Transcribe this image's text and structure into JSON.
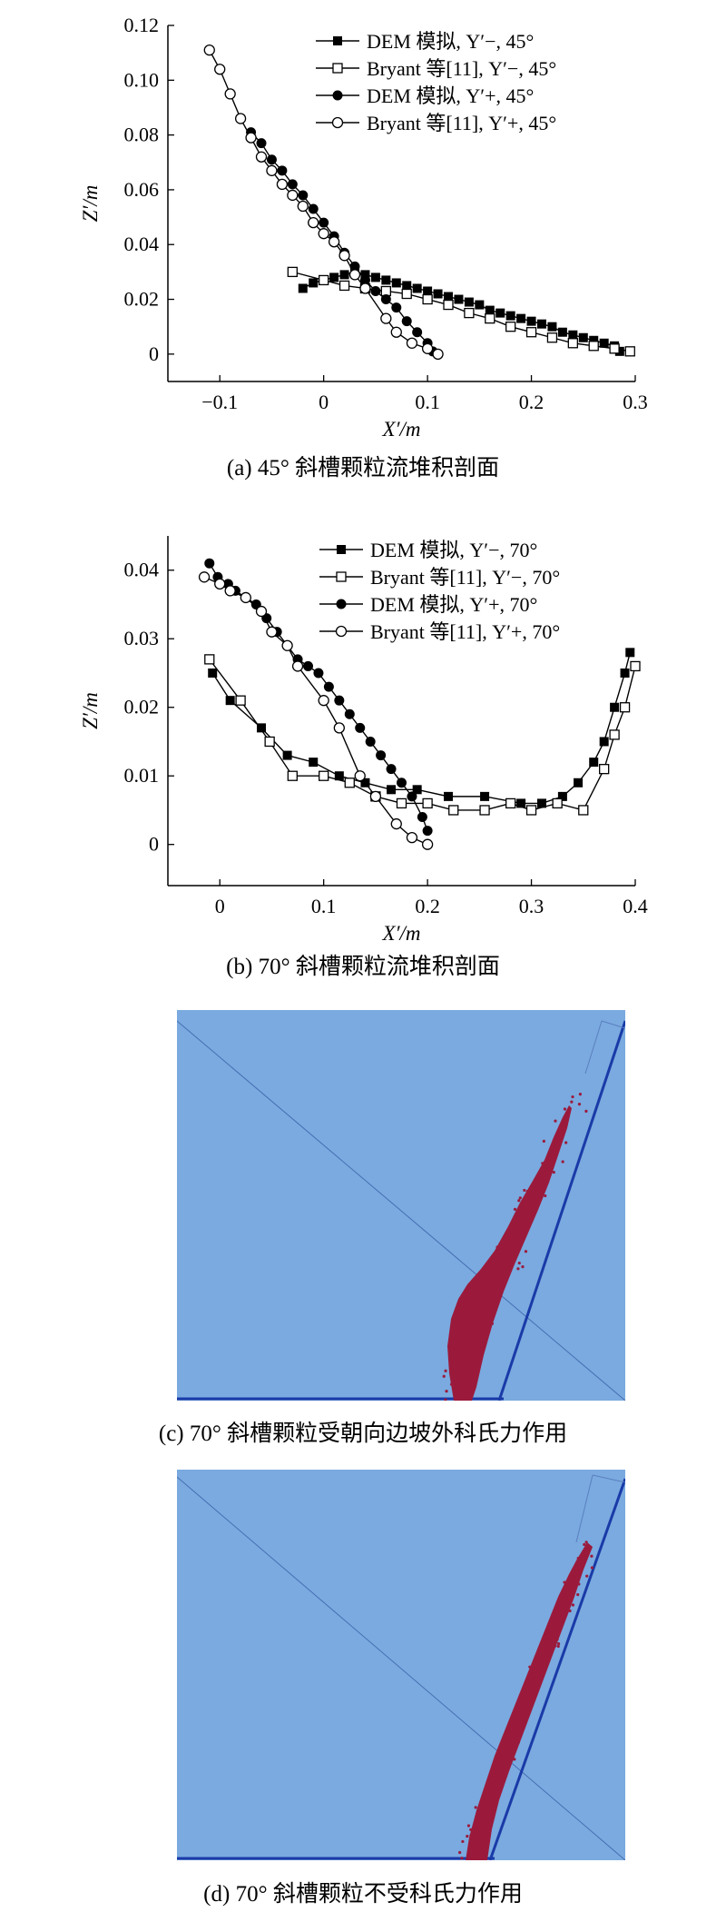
{
  "charts": {
    "a": {
      "caption": "(a) 45° 斜槽颗粒流堆积剖面",
      "xlabel": "X′/m",
      "ylabel": "Z′/m",
      "xticks": [
        "−0.1",
        "0",
        "0.1",
        "0.2",
        "0.3"
      ],
      "yticks": [
        "0",
        "0.02",
        "0.04",
        "0.06",
        "0.08",
        "0.10",
        "0.12"
      ],
      "legend": [
        {
          "label": "DEM 模拟, Y′−, 45°",
          "marker": "square-filled"
        },
        {
          "label": "Bryant 等[11], Y′−, 45°",
          "marker": "square-open"
        },
        {
          "label": "DEM 模拟, Y′+, 45°",
          "marker": "circle-filled"
        },
        {
          "label": "Bryant 等[11], Y′+, 45°",
          "marker": "circle-open"
        }
      ]
    },
    "b": {
      "caption": "(b) 70° 斜槽颗粒流堆积剖面",
      "xlabel": "X′/m",
      "ylabel": "Z′/m",
      "xticks": [
        "0",
        "0.1",
        "0.2",
        "0.3",
        "0.4"
      ],
      "yticks": [
        "0",
        "0.01",
        "0.02",
        "0.03",
        "0.04"
      ],
      "legend": [
        {
          "label": "DEM 模拟, Y′−, 70°",
          "marker": "square-filled"
        },
        {
          "label": "Bryant 等[11], Y′−, 70°",
          "marker": "square-open"
        },
        {
          "label": "DEM 模拟, Y′+, 70°",
          "marker": "circle-filled"
        },
        {
          "label": "Bryant 等[11], Y′+, 70°",
          "marker": "circle-open"
        }
      ]
    },
    "c": {
      "caption": "(c) 70° 斜槽颗粒受朝向边坡外科氏力作用"
    },
    "d": {
      "caption": "(d) 70° 斜槽颗粒不受科氏力作用"
    }
  },
  "chart_data": [
    {
      "type": "line",
      "xlim": [
        -0.15,
        0.3
      ],
      "ylim": [
        -0.01,
        0.12
      ],
      "grid": false,
      "legend_position": "top-right",
      "series": [
        {
          "name": "DEM 模拟, Y′−, 45°",
          "marker": "square-filled",
          "x": [
            -0.02,
            -0.01,
            0.0,
            0.01,
            0.02,
            0.03,
            0.04,
            0.05,
            0.06,
            0.07,
            0.08,
            0.09,
            0.1,
            0.11,
            0.12,
            0.13,
            0.14,
            0.15,
            0.16,
            0.17,
            0.18,
            0.19,
            0.2,
            0.21,
            0.22,
            0.23,
            0.24,
            0.25,
            0.26,
            0.27,
            0.28,
            0.285
          ],
          "y": [
            0.024,
            0.026,
            0.027,
            0.028,
            0.029,
            0.03,
            0.029,
            0.028,
            0.027,
            0.026,
            0.025,
            0.024,
            0.023,
            0.022,
            0.021,
            0.02,
            0.019,
            0.018,
            0.016,
            0.015,
            0.014,
            0.013,
            0.012,
            0.011,
            0.01,
            0.008,
            0.007,
            0.006,
            0.005,
            0.004,
            0.003,
            0.001
          ]
        },
        {
          "name": "Bryant 等[11], Y′−, 45°",
          "marker": "square-open",
          "x": [
            -0.03,
            0.0,
            0.02,
            0.04,
            0.06,
            0.08,
            0.1,
            0.12,
            0.14,
            0.16,
            0.18,
            0.2,
            0.22,
            0.24,
            0.26,
            0.28,
            0.295
          ],
          "y": [
            0.03,
            0.027,
            0.025,
            0.024,
            0.023,
            0.022,
            0.02,
            0.018,
            0.015,
            0.013,
            0.01,
            0.008,
            0.006,
            0.004,
            0.003,
            0.002,
            0.001
          ]
        },
        {
          "name": "DEM 模拟, Y′+, 45°",
          "marker": "circle-filled",
          "x": [
            -0.07,
            -0.06,
            -0.05,
            -0.04,
            -0.03,
            -0.02,
            -0.01,
            0.0,
            0.01,
            0.02,
            0.03,
            0.04,
            0.05,
            0.06,
            0.07,
            0.08,
            0.09,
            0.1,
            0.105
          ],
          "y": [
            0.081,
            0.077,
            0.071,
            0.067,
            0.062,
            0.058,
            0.053,
            0.048,
            0.043,
            0.037,
            0.032,
            0.027,
            0.023,
            0.02,
            0.017,
            0.012,
            0.008,
            0.004,
            0.001
          ]
        },
        {
          "name": "Bryant 等[11], Y′+, 45°",
          "marker": "circle-open",
          "x": [
            -0.11,
            -0.1,
            -0.09,
            -0.08,
            -0.07,
            -0.06,
            -0.05,
            -0.04,
            -0.03,
            -0.02,
            -0.01,
            0.0,
            0.01,
            0.02,
            0.03,
            0.04,
            0.06,
            0.07,
            0.085,
            0.1,
            0.11
          ],
          "y": [
            0.111,
            0.104,
            0.095,
            0.086,
            0.079,
            0.072,
            0.067,
            0.062,
            0.058,
            0.054,
            0.048,
            0.044,
            0.041,
            0.036,
            0.029,
            0.024,
            0.013,
            0.008,
            0.004,
            0.002,
            0.0
          ]
        }
      ]
    },
    {
      "type": "line",
      "xlim": [
        -0.05,
        0.4
      ],
      "ylim": [
        -0.006,
        0.045
      ],
      "grid": false,
      "legend_position": "top-right",
      "series": [
        {
          "name": "DEM 模拟, Y′−, 70°",
          "marker": "square-filled",
          "x": [
            -0.007,
            0.01,
            0.04,
            0.065,
            0.09,
            0.115,
            0.14,
            0.165,
            0.19,
            0.22,
            0.255,
            0.29,
            0.31,
            0.33,
            0.345,
            0.36,
            0.37,
            0.38,
            0.39,
            0.395
          ],
          "y": [
            0.025,
            0.021,
            0.017,
            0.013,
            0.012,
            0.01,
            0.009,
            0.008,
            0.008,
            0.007,
            0.007,
            0.006,
            0.006,
            0.007,
            0.009,
            0.012,
            0.015,
            0.02,
            0.025,
            0.028
          ]
        },
        {
          "name": "Bryant 等[11], Y′−, 70°",
          "marker": "square-open",
          "x": [
            -0.01,
            0.02,
            0.048,
            0.07,
            0.1,
            0.125,
            0.15,
            0.175,
            0.2,
            0.225,
            0.255,
            0.28,
            0.3,
            0.325,
            0.35,
            0.37,
            0.38,
            0.39,
            0.4
          ],
          "y": [
            0.027,
            0.021,
            0.015,
            0.01,
            0.01,
            0.009,
            0.007,
            0.006,
            0.006,
            0.005,
            0.005,
            0.006,
            0.005,
            0.006,
            0.005,
            0.011,
            0.016,
            0.02,
            0.026
          ]
        },
        {
          "name": "DEM 模拟, Y′+, 70°",
          "marker": "circle-filled",
          "x": [
            -0.01,
            -0.002,
            0.008,
            0.015,
            0.025,
            0.035,
            0.045,
            0.055,
            0.065,
            0.075,
            0.085,
            0.095,
            0.105,
            0.115,
            0.125,
            0.135,
            0.145,
            0.155,
            0.165,
            0.175,
            0.185,
            0.195,
            0.2
          ],
          "y": [
            0.041,
            0.039,
            0.038,
            0.037,
            0.036,
            0.035,
            0.033,
            0.031,
            0.029,
            0.027,
            0.026,
            0.025,
            0.023,
            0.021,
            0.019,
            0.017,
            0.015,
            0.013,
            0.011,
            0.009,
            0.007,
            0.004,
            0.002
          ]
        },
        {
          "name": "Bryant 等[11], Y′+, 70°",
          "marker": "circle-open",
          "x": [
            -0.015,
            0.0,
            0.01,
            0.025,
            0.04,
            0.05,
            0.065,
            0.075,
            0.1,
            0.115,
            0.135,
            0.15,
            0.17,
            0.185,
            0.2
          ],
          "y": [
            0.039,
            0.038,
            0.037,
            0.036,
            0.034,
            0.031,
            0.029,
            0.026,
            0.021,
            0.017,
            0.01,
            0.007,
            0.003,
            0.001,
            0.0
          ]
        }
      ]
    }
  ],
  "colors": {
    "sim_bg": "#7AAADF",
    "sim_border": "#2244aa",
    "particles": "#9b1a3c"
  }
}
